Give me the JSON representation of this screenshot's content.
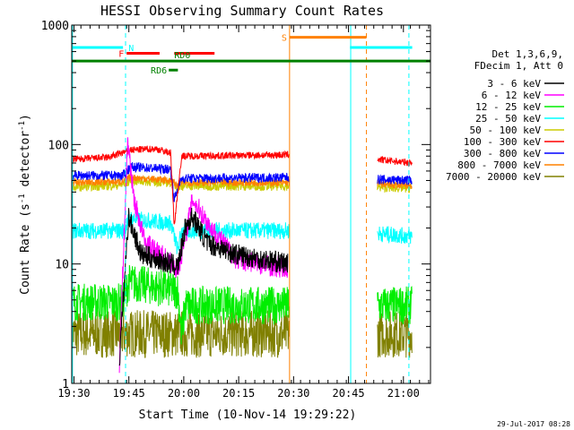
{
  "chart_data": {
    "type": "line",
    "title": "HESSI Observing Summary Count Rates",
    "xlabel": "Start Time (10-Nov-14 19:29:22)",
    "ylabel_main": "Count Rate (s",
    "ylabel_sup1": "-1",
    "ylabel_mid": " detector",
    "ylabel_sup2": "-1",
    "ylabel_end": ")",
    "y_scale": "log",
    "ylim": [
      1,
      1000
    ],
    "xlim_minutes": [
      0,
      98
    ],
    "x_ticks": [
      {
        "label": "19:30",
        "min": 0.6
      },
      {
        "label": "19:45",
        "min": 15.6
      },
      {
        "label": "20:00",
        "min": 30.6
      },
      {
        "label": "20:15",
        "min": 45.6
      },
      {
        "label": "20:30",
        "min": 60.6
      },
      {
        "label": "20:45",
        "min": 75.6
      },
      {
        "label": "21:00",
        "min": 90.6
      }
    ],
    "y_tick_labels": [
      {
        "label": "1",
        "value": 1
      },
      {
        "label": "10",
        "value": 10
      },
      {
        "label": "100",
        "value": 100
      },
      {
        "label": "1000",
        "value": 1000
      }
    ],
    "legend_header": [
      "Det 1,3,6,9,",
      "FDecim 1, Att 0"
    ],
    "series": [
      {
        "name": "3 - 6 keV",
        "color": "#000000"
      },
      {
        "name": "6 - 12 keV",
        "color": "#ff00ff"
      },
      {
        "name": "12 - 25 keV",
        "color": "#00ee00"
      },
      {
        "name": "25 - 50 keV",
        "color": "#00ffff"
      },
      {
        "name": "50 - 100 keV",
        "color": "#cccc00"
      },
      {
        "name": "100 - 300 keV",
        "color": "#ff0000"
      },
      {
        "name": "300 - 800 keV",
        "color": "#0000ff"
      },
      {
        "name": "800 - 7000 keV",
        "color": "#ff8000"
      },
      {
        "name": "7000 - 20000 keV",
        "color": "#808000"
      }
    ],
    "data_segments_minutes": [
      [
        0,
        59.5
      ],
      [
        83.5,
        93
      ]
    ],
    "levels": {
      "3 - 6 keV": [
        [
          13,
          1.5
        ],
        [
          15.5,
          25
        ],
        [
          19,
          12
        ],
        [
          27,
          10
        ],
        [
          29,
          9.5
        ],
        [
          31,
          20
        ],
        [
          33,
          25
        ],
        [
          37,
          15
        ],
        [
          45,
          12
        ],
        [
          52,
          11
        ],
        [
          59,
          10
        ]
      ],
      "6 - 12 keV": [
        [
          13,
          1.5
        ],
        [
          15.3,
          110
        ],
        [
          17,
          35
        ],
        [
          20,
          15
        ],
        [
          26,
          11
        ],
        [
          29,
          9
        ],
        [
          30.5,
          14
        ],
        [
          33,
          35
        ],
        [
          38,
          20
        ],
        [
          45,
          11
        ],
        [
          52,
          10
        ],
        [
          59,
          9
        ]
      ],
      "12 - 25 keV": [
        [
          0,
          4.8
        ],
        [
          14,
          4.8
        ],
        [
          15.5,
          7
        ],
        [
          22,
          6.5
        ],
        [
          29,
          6
        ],
        [
          30,
          2.5
        ],
        [
          31,
          4.5
        ],
        [
          59,
          4.5
        ],
        [
          83.5,
          4.5
        ],
        [
          93,
          4.5
        ]
      ],
      "25 - 50 keV": [
        [
          0,
          19
        ],
        [
          14,
          19
        ],
        [
          16,
          24
        ],
        [
          27,
          22
        ],
        [
          29,
          13
        ],
        [
          30,
          19
        ],
        [
          59,
          19
        ],
        [
          83.5,
          18
        ],
        [
          93,
          17
        ]
      ],
      "50 - 100 keV": [
        [
          0,
          44
        ],
        [
          14,
          46
        ],
        [
          16,
          50
        ],
        [
          27,
          48
        ],
        [
          29,
          44
        ],
        [
          30,
          45
        ],
        [
          59,
          45
        ],
        [
          83.5,
          44
        ],
        [
          93,
          43
        ]
      ],
      "100 - 300 keV": [
        [
          0,
          75
        ],
        [
          10,
          78
        ],
        [
          16,
          90
        ],
        [
          23,
          92
        ],
        [
          27,
          85
        ],
        [
          28,
          21
        ],
        [
          30,
          80
        ],
        [
          59,
          82
        ],
        [
          83.5,
          75
        ],
        [
          93,
          70
        ]
      ],
      "300 - 800 keV": [
        [
          0,
          55
        ],
        [
          14,
          55
        ],
        [
          16,
          65
        ],
        [
          27,
          62
        ],
        [
          28,
          35
        ],
        [
          30,
          52
        ],
        [
          59,
          53
        ],
        [
          83.5,
          51
        ],
        [
          93,
          50
        ]
      ],
      "800 - 7000 keV": [
        [
          0,
          48
        ],
        [
          14,
          49
        ],
        [
          16,
          53
        ],
        [
          27,
          50
        ],
        [
          29,
          45
        ],
        [
          30,
          48
        ],
        [
          59,
          48
        ],
        [
          83.5,
          47
        ],
        [
          93,
          45
        ]
      ],
      "7000 - 20000 keV": [
        [
          0,
          2.6
        ],
        [
          93,
          2.6
        ]
      ]
    },
    "flag_bars": [
      {
        "label": "N",
        "color": "#00ffff",
        "value": 650,
        "segments": [
          [
            0,
            14
          ]
        ]
      },
      {
        "label": "",
        "color": "#00ffff",
        "value": 650,
        "segments": [
          [
            76,
            93
          ]
        ]
      },
      {
        "label": "S",
        "color": "#ff8000",
        "value": 790,
        "segments": [
          [
            59.5,
            80.5
          ]
        ]
      },
      {
        "label": "F",
        "color": "#ff0000",
        "value": 580,
        "segments": [
          [
            15,
            24
          ],
          [
            28,
            39
          ]
        ]
      },
      {
        "label": "",
        "color": "#008000",
        "value": 500,
        "segments": [
          [
            0,
            98
          ]
        ]
      },
      {
        "label": "RD0",
        "color": "#008000",
        "value": 500,
        "segments": []
      },
      {
        "label": "RD6",
        "color": "#008000",
        "value": 420,
        "segments": [
          [
            26.5,
            29
          ]
        ]
      }
    ],
    "vertical_markers": [
      {
        "min": 14.7,
        "color": "#00ffff",
        "style": "dashed"
      },
      {
        "min": 76.2,
        "color": "#00ffff",
        "style": "solid"
      },
      {
        "min": 92.1,
        "color": "#00ffff",
        "style": "dashed"
      },
      {
        "min": 59.5,
        "color": "#ff8000",
        "style": "solid"
      },
      {
        "min": 80.5,
        "color": "#ff8000",
        "style": "dashed"
      },
      {
        "min": 0.2,
        "color": "#00ffff",
        "style": "solid"
      }
    ],
    "grid": false
  },
  "footer_date": "29-Jul-2017 08:28"
}
